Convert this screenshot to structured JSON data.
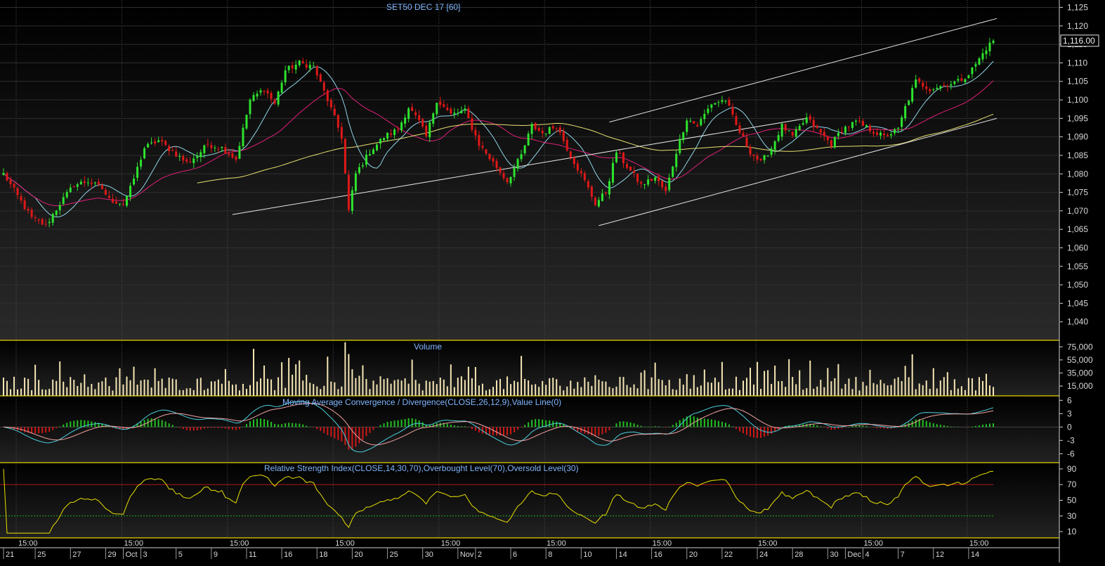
{
  "chart_data": [
    {
      "type": "candlestick",
      "title": "SET50 DEC 17   [60]",
      "ylim": [
        1035,
        1127
      ],
      "yticks": [
        1040,
        1045,
        1050,
        1055,
        1060,
        1065,
        1070,
        1075,
        1080,
        1085,
        1090,
        1095,
        1100,
        1105,
        1110,
        1115,
        1120,
        1125
      ],
      "ytick_labels": [
        "1,040",
        "1,045",
        "1,050",
        "1,055",
        "1,060",
        "1,065",
        "1,070",
        "1,075",
        "1,080",
        "1,085",
        "1,090",
        "1,095",
        "1,100",
        "1,105",
        "1,110",
        "1,115",
        "1,120",
        "1,125"
      ],
      "last_price_label": "1,116.00",
      "last_price": 1116,
      "n_bars": 282,
      "close_anchors": [
        [
          0,
          1080
        ],
        [
          4,
          1074
        ],
        [
          8,
          1068
        ],
        [
          12,
          1066
        ],
        [
          16,
          1072
        ],
        [
          20,
          1077
        ],
        [
          24,
          1078
        ],
        [
          28,
          1076
        ],
        [
          30,
          1073
        ],
        [
          34,
          1072
        ],
        [
          36,
          1076
        ],
        [
          40,
          1087
        ],
        [
          44,
          1089
        ],
        [
          48,
          1086
        ],
        [
          52,
          1083
        ],
        [
          55,
          1085
        ],
        [
          58,
          1088
        ],
        [
          62,
          1087
        ],
        [
          66,
          1084
        ],
        [
          70,
          1100
        ],
        [
          74,
          1103
        ],
        [
          77,
          1099
        ],
        [
          80,
          1108
        ],
        [
          84,
          1110
        ],
        [
          88,
          1109
        ],
        [
          92,
          1100
        ],
        [
          96,
          1090
        ],
        [
          98,
          1070
        ],
        [
          100,
          1080
        ],
        [
          104,
          1086
        ],
        [
          108,
          1090
        ],
        [
          112,
          1092
        ],
        [
          115,
          1098
        ],
        [
          118,
          1094
        ],
        [
          120,
          1090
        ],
        [
          123,
          1100
        ],
        [
          127,
          1096
        ],
        [
          131,
          1097
        ],
        [
          135,
          1088
        ],
        [
          139,
          1083
        ],
        [
          143,
          1078
        ],
        [
          147,
          1085
        ],
        [
          150,
          1093
        ],
        [
          153,
          1091
        ],
        [
          157,
          1093
        ],
        [
          161,
          1085
        ],
        [
          165,
          1078
        ],
        [
          168,
          1072
        ],
        [
          171,
          1075
        ],
        [
          174,
          1086
        ],
        [
          177,
          1082
        ],
        [
          181,
          1077
        ],
        [
          185,
          1079
        ],
        [
          188,
          1075
        ],
        [
          191,
          1086
        ],
        [
          194,
          1095
        ],
        [
          197,
          1093
        ],
        [
          201,
          1099
        ],
        [
          205,
          1100
        ],
        [
          208,
          1093
        ],
        [
          212,
          1086
        ],
        [
          215,
          1083
        ],
        [
          218,
          1087
        ],
        [
          221,
          1093
        ],
        [
          224,
          1090
        ],
        [
          228,
          1095
        ],
        [
          232,
          1091
        ],
        [
          235,
          1088
        ],
        [
          238,
          1092
        ],
        [
          242,
          1094
        ],
        [
          246,
          1092
        ],
        [
          250,
          1090
        ],
        [
          254,
          1092
        ],
        [
          256,
          1098
        ],
        [
          259,
          1105
        ],
        [
          263,
          1103
        ],
        [
          267,
          1104
        ],
        [
          271,
          1105
        ],
        [
          274,
          1107
        ],
        [
          277,
          1111
        ],
        [
          279,
          1114
        ],
        [
          281,
          1116
        ]
      ],
      "moving_averages": [
        {
          "name": "short MA",
          "color": "#8fd6e8"
        },
        {
          "name": "medium MA",
          "color": "#e0207a"
        },
        {
          "name": "long MA",
          "color": "#e8e070"
        }
      ],
      "trendlines": [
        {
          "from": [
            65,
            1069
          ],
          "to": [
            228,
            1095
          ]
        },
        {
          "from": [
            172,
            1094
          ],
          "to": [
            282,
            1122
          ]
        },
        {
          "from": [
            169,
            1066
          ],
          "to": [
            282,
            1095
          ]
        }
      ]
    },
    {
      "type": "bar",
      "title": "Volume",
      "ylim": [
        0,
        85000
      ],
      "yticks": [
        15000,
        35000,
        55000,
        75000
      ],
      "ytick_labels": [
        "15,000",
        "35,000",
        "55,000",
        "75,000"
      ]
    },
    {
      "type": "line",
      "title": "Moving Average Convergence / Divergence(CLOSE,26,12,9),Value Line(0)",
      "ylim": [
        -8,
        7
      ],
      "yticks": [
        -6,
        -3,
        0,
        3,
        6
      ],
      "ytick_labels": [
        "-6",
        "-3",
        "0",
        "3",
        "6"
      ],
      "series": [
        {
          "name": "MACD",
          "color": "#4ad0e0"
        },
        {
          "name": "Signal",
          "color": "#f0a0a0"
        }
      ]
    },
    {
      "type": "line",
      "title": "Relative Strength Index(CLOSE,14,30,70),Overbought Level(70),Oversold Level(30)",
      "ylim": [
        2,
        98
      ],
      "yticks": [
        10,
        30,
        50,
        70,
        90
      ],
      "ytick_labels": [
        "10",
        "30",
        "50",
        "70",
        "90"
      ],
      "levels": [
        70,
        30
      ],
      "series": [
        {
          "name": "RSI",
          "color": "#e8e000"
        }
      ]
    }
  ],
  "time_axis": {
    "hour_labels": [
      {
        "bar": 2,
        "label": "15:00"
      },
      {
        "bar": 32,
        "label": "15:00"
      },
      {
        "bar": 62,
        "label": "15:00"
      },
      {
        "bar": 92,
        "label": "15:00"
      },
      {
        "bar": 122,
        "label": "15:00"
      },
      {
        "bar": 152,
        "label": "15:00"
      },
      {
        "bar": 182,
        "label": "15:00"
      },
      {
        "bar": 212,
        "label": "15:00"
      },
      {
        "bar": 242,
        "label": "15:00"
      },
      {
        "bar": 272,
        "label": "15:00"
      }
    ],
    "date_labels": [
      {
        "bar": 0,
        "label": "21"
      },
      {
        "bar": 9,
        "label": "25"
      },
      {
        "bar": 19,
        "label": "27"
      },
      {
        "bar": 29,
        "label": "29"
      },
      {
        "bar": 34,
        "label": "Oct"
      },
      {
        "bar": 39,
        "label": "3"
      },
      {
        "bar": 49,
        "label": "5"
      },
      {
        "bar": 59,
        "label": "9"
      },
      {
        "bar": 69,
        "label": "11"
      },
      {
        "bar": 79,
        "label": "16"
      },
      {
        "bar": 89,
        "label": "18"
      },
      {
        "bar": 99,
        "label": "20"
      },
      {
        "bar": 109,
        "label": "25"
      },
      {
        "bar": 119,
        "label": "30"
      },
      {
        "bar": 129,
        "label": "Nov"
      },
      {
        "bar": 134,
        "label": "2"
      },
      {
        "bar": 144,
        "label": "6"
      },
      {
        "bar": 154,
        "label": "8"
      },
      {
        "bar": 164,
        "label": "10"
      },
      {
        "bar": 174,
        "label": "14"
      },
      {
        "bar": 184,
        "label": "16"
      },
      {
        "bar": 194,
        "label": "20"
      },
      {
        "bar": 204,
        "label": "22"
      },
      {
        "bar": 214,
        "label": "24"
      },
      {
        "bar": 224,
        "label": "28"
      },
      {
        "bar": 234,
        "label": "30"
      },
      {
        "bar": 239,
        "label": "Dec"
      },
      {
        "bar": 244,
        "label": "4"
      },
      {
        "bar": 254,
        "label": "7"
      },
      {
        "bar": 264,
        "label": "12"
      },
      {
        "bar": 274,
        "label": "14"
      }
    ]
  },
  "colors": {
    "up": "#2ee32e",
    "down": "#e01818",
    "grid": "#505050",
    "separator": "#e6d200",
    "axis_text": "#d8d8d8",
    "title": "#7fb6ff",
    "volume": "#f5e6b4",
    "macd_hist_up": "#22c022",
    "macd_hist_down": "#d01818",
    "rsi_overbought": "#b01818",
    "rsi_oversold": "#20b020",
    "trendline": "#e6e6e6"
  }
}
